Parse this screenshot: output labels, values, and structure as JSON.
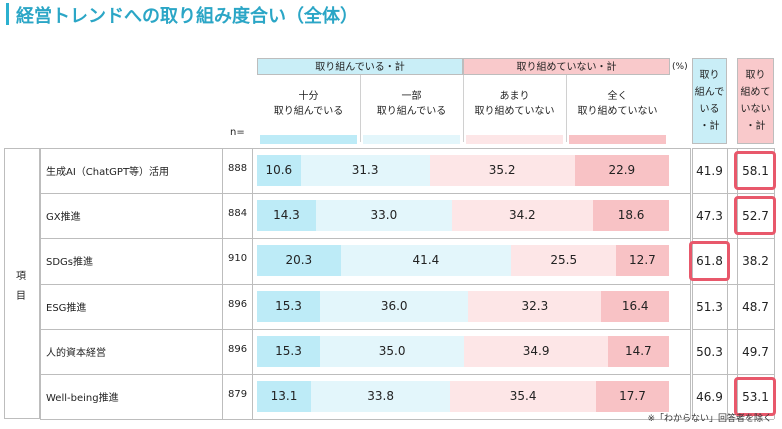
{
  "title": "経営トレンドへの取り組み度合い（全体）",
  "unit": "(%)",
  "n_label": "n=",
  "item_label": [
    "項",
    "目"
  ],
  "note": "※「わからない」回答者を除く",
  "colors": {
    "yes_strong": "#bdebf7",
    "yes_light": "#e3f6fb",
    "no_light": "#fde6e7",
    "no_strong": "#f8c2c5",
    "highlight": "#e8586b",
    "title": "#2ba6c6"
  },
  "header": {
    "group_yes": "取り組んでいる・計",
    "group_no": "取り組めていない・計",
    "categories": [
      [
        "十分",
        "取り組んでいる"
      ],
      [
        "一部",
        "取り組んでいる"
      ],
      [
        "あまり",
        "取り組めていない"
      ],
      [
        "全く",
        "取り組めていない"
      ]
    ],
    "total_yes": [
      "取り",
      "組んで",
      "いる",
      "・計"
    ],
    "total_no": [
      "取り",
      "組めて",
      "いない",
      "・計"
    ]
  },
  "chart_data": {
    "type": "bar",
    "stacked": true,
    "orientation": "horizontal",
    "title": "経営トレンドへの取り組み度合い（全体）",
    "unit": "%",
    "categories": [
      "生成AI（ChatGPT等）活用",
      "GX推進",
      "SDGs推進",
      "ESG推進",
      "人的資本経営",
      "Well-being推進"
    ],
    "n": [
      "888",
      "884",
      "910",
      "896",
      "896",
      "879"
    ],
    "series": [
      {
        "name": "十分取り組んでいる",
        "values": [
          10.6,
          14.3,
          20.3,
          15.3,
          15.3,
          13.1
        ]
      },
      {
        "name": "一部取り組んでいる",
        "values": [
          31.3,
          33.0,
          41.4,
          36.0,
          35.0,
          33.8
        ]
      },
      {
        "name": "あまり取り組めていない",
        "values": [
          35.2,
          34.2,
          25.5,
          32.3,
          34.9,
          35.4
        ]
      },
      {
        "name": "全く取り組めていない",
        "values": [
          22.9,
          18.6,
          12.7,
          16.4,
          14.7,
          17.7
        ]
      }
    ],
    "totals": {
      "yes": [
        41.9,
        47.3,
        61.8,
        51.3,
        50.3,
        46.9
      ],
      "no": [
        58.1,
        52.7,
        38.2,
        48.7,
        49.7,
        53.1
      ]
    },
    "highlighted": [
      {
        "row": 0,
        "col": "no"
      },
      {
        "row": 1,
        "col": "no"
      },
      {
        "row": 2,
        "col": "yes"
      },
      {
        "row": 5,
        "col": "no"
      }
    ],
    "xlim": [
      0,
      100
    ]
  }
}
